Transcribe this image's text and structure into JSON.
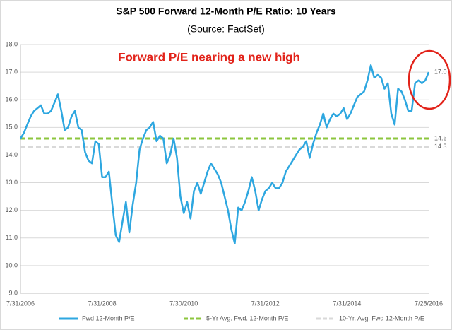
{
  "chart_data": {
    "type": "line",
    "title": "S&P 500 Forward 12-Month P/E Ratio: 10 Years",
    "subtitle": "(Source: FactSet)",
    "annotations": [
      "Forward P/E nearing a new high"
    ],
    "end_label": "17.0",
    "categories": [
      "7/31/2006",
      null,
      null,
      null,
      null,
      null,
      null,
      null,
      null,
      null,
      null,
      null,
      null,
      null,
      null,
      null,
      null,
      null,
      null,
      null,
      null,
      null,
      null,
      null,
      "7/31/2008",
      null,
      null,
      null,
      null,
      null,
      null,
      null,
      null,
      null,
      null,
      null,
      null,
      null,
      null,
      null,
      null,
      null,
      null,
      null,
      null,
      null,
      null,
      null,
      "7/30/2010",
      null,
      null,
      null,
      null,
      null,
      null,
      null,
      null,
      null,
      null,
      null,
      null,
      null,
      null,
      null,
      null,
      null,
      null,
      null,
      null,
      null,
      null,
      null,
      "7/31/2012",
      null,
      null,
      null,
      null,
      null,
      null,
      null,
      null,
      null,
      null,
      null,
      null,
      null,
      null,
      null,
      null,
      null,
      null,
      null,
      null,
      null,
      null,
      null,
      "7/31/2014",
      null,
      null,
      null,
      null,
      null,
      null,
      null,
      null,
      null,
      null,
      null,
      null,
      null,
      null,
      null,
      null,
      null,
      null,
      null,
      null,
      null,
      null,
      null,
      "7/28/2016"
    ],
    "series": [
      {
        "name": "Fwd 12-Month P/E",
        "color": "#2ea7e0",
        "values": [
          14.6,
          14.8,
          15.1,
          15.4,
          15.6,
          15.7,
          15.8,
          15.5,
          15.5,
          15.6,
          15.9,
          16.2,
          15.6,
          14.9,
          15.0,
          15.4,
          15.6,
          15.0,
          14.9,
          14.1,
          13.8,
          13.7,
          14.5,
          14.4,
          13.2,
          13.2,
          13.4,
          12.2,
          11.1,
          10.85,
          11.6,
          12.3,
          11.2,
          12.2,
          13.0,
          14.2,
          14.6,
          14.9,
          15.0,
          15.2,
          14.5,
          14.7,
          14.6,
          13.7,
          14.0,
          14.6,
          13.9,
          12.5,
          11.9,
          12.3,
          11.7,
          12.7,
          13.0,
          12.6,
          13.0,
          13.4,
          13.7,
          13.5,
          13.3,
          13.0,
          12.5,
          12.0,
          11.3,
          10.8,
          12.1,
          12.0,
          12.3,
          12.7,
          13.2,
          12.7,
          12.0,
          12.4,
          12.7,
          12.8,
          13.0,
          12.8,
          12.8,
          13.0,
          13.4,
          13.6,
          13.8,
          14.0,
          14.2,
          14.3,
          14.5,
          13.9,
          14.4,
          14.8,
          15.1,
          15.5,
          15.0,
          15.3,
          15.5,
          15.4,
          15.5,
          15.7,
          15.3,
          15.5,
          15.8,
          16.1,
          16.2,
          16.3,
          16.7,
          17.25,
          16.8,
          16.9,
          16.8,
          16.4,
          16.6,
          15.5,
          15.1,
          16.4,
          16.3,
          16.0,
          15.6,
          15.6,
          16.6,
          16.7,
          16.6,
          16.7,
          17.0
        ]
      }
    ],
    "reference_lines": [
      {
        "name": "5-Yr Avg. Fwd. 12-Month P/E",
        "color": "#8cc63e",
        "value": 14.6
      },
      {
        "name": "10-Yr. Avg. Fwd 12-Month P/E",
        "color": "#d9d9d9",
        "value": 14.3
      }
    ],
    "ylim": [
      9,
      18
    ],
    "yticks": [
      {
        "value": 9,
        "label": "9.0"
      },
      {
        "value": 10,
        "label": "10.0"
      },
      {
        "value": 11,
        "label": "11.0"
      },
      {
        "value": 12,
        "label": "12.0"
      },
      {
        "value": 13,
        "label": "13.0"
      },
      {
        "value": 14,
        "label": "14.0"
      },
      {
        "value": 15,
        "label": "15.0"
      },
      {
        "value": 16,
        "label": "16.0"
      },
      {
        "value": 17,
        "label": "17.0"
      },
      {
        "value": 18,
        "label": "18.0"
      }
    ],
    "grid": true
  }
}
